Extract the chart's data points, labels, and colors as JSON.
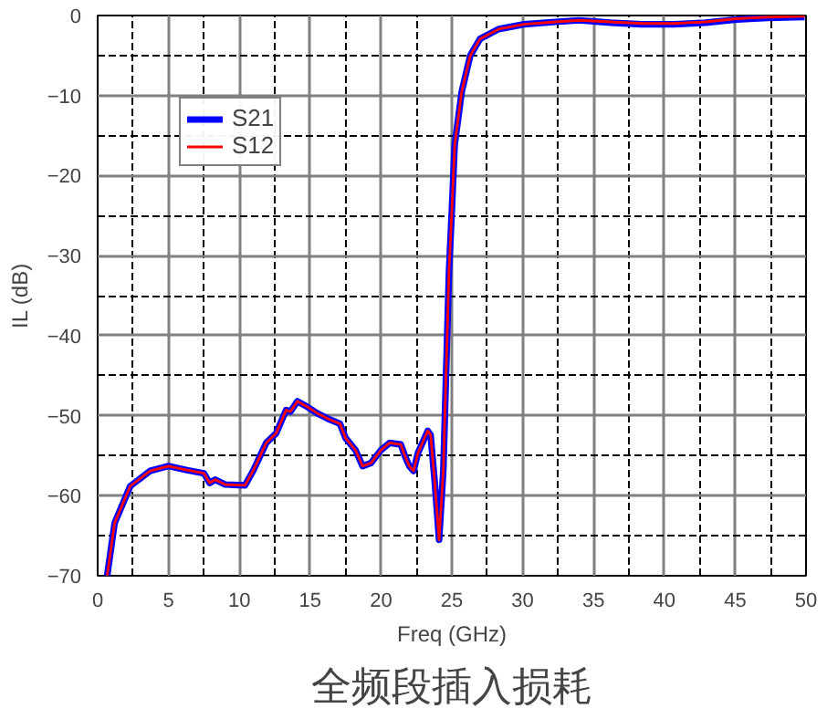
{
  "chart_data": {
    "type": "line",
    "title": "全频段插入损耗",
    "xlabel": "Freq (GHz)",
    "ylabel": "IL (dB)",
    "xlim": [
      0,
      50
    ],
    "ylim": [
      -70,
      0
    ],
    "xticks": [
      0,
      5,
      10,
      15,
      20,
      25,
      30,
      35,
      40,
      45,
      50
    ],
    "yticks": [
      -70,
      -60,
      -50,
      -40,
      -30,
      -20,
      -10,
      0
    ],
    "grid": true,
    "legend": "top left",
    "line_style": "solid",
    "marker": "none",
    "x": [
      0.67,
      1.2,
      2.3,
      3.7,
      5.0,
      6.3,
      7.5,
      7.9,
      8.3,
      9.0,
      10.4,
      11.0,
      11.9,
      12.6,
      13.3,
      13.6,
      14.1,
      14.8,
      15.5,
      16.4,
      17.1,
      17.5,
      18.2,
      18.7,
      19.3,
      20.0,
      20.6,
      21.4,
      21.7,
      22.0,
      22.3,
      22.6,
      23.3,
      23.5,
      23.8,
      24.1,
      24.4,
      24.8,
      25.0,
      25.2,
      25.7,
      26.3,
      27.0,
      28.3,
      30.1,
      32.3,
      34.0,
      36.2,
      38.4,
      40.7,
      42.9,
      45.1,
      47.3,
      49.9
    ],
    "series": [
      {
        "name": "S21",
        "color": "#0000ff",
        "values": [
          -70,
          -63.4,
          -58.8,
          -56.9,
          -56.3,
          -56.8,
          -57.2,
          -58.4,
          -58,
          -58.6,
          -58.7,
          -56.8,
          -53.4,
          -52.2,
          -49.3,
          -49.5,
          -48.2,
          -48.9,
          -49.7,
          -50.5,
          -51,
          -52.8,
          -54.3,
          -56.3,
          -55.9,
          -54.3,
          -53.4,
          -53.6,
          -55.1,
          -56.3,
          -56.9,
          -54.7,
          -51.9,
          -52.4,
          -58.4,
          -65.5,
          -56.8,
          -31.9,
          -24.4,
          -16.2,
          -9.5,
          -5,
          -2.9,
          -1.7,
          -1.1,
          -0.8,
          -0.6,
          -0.9,
          -1.1,
          -1.1,
          -0.9,
          -0.5,
          -0.3,
          -0.2
        ]
      },
      {
        "name": "S12",
        "color": "#ff0000",
        "values": [
          -70,
          -63.4,
          -58.8,
          -56.9,
          -56.3,
          -56.8,
          -57.2,
          -58.4,
          -58,
          -58.6,
          -58.7,
          -56.8,
          -53.4,
          -52.2,
          -49.3,
          -49.5,
          -48.2,
          -48.9,
          -49.7,
          -50.5,
          -51,
          -52.8,
          -54.3,
          -56.3,
          -55.9,
          -54.3,
          -53.4,
          -53.6,
          -55.1,
          -56.3,
          -56.9,
          -54.7,
          -51.9,
          -52.4,
          -58.4,
          -65.5,
          -56.8,
          -31.9,
          -24.4,
          -16.2,
          -9.5,
          -5,
          -2.9,
          -1.7,
          -1.1,
          -0.8,
          -0.6,
          -0.8,
          -1,
          -1,
          -0.8,
          -0.4,
          -0.2,
          -0.1
        ]
      }
    ]
  }
}
